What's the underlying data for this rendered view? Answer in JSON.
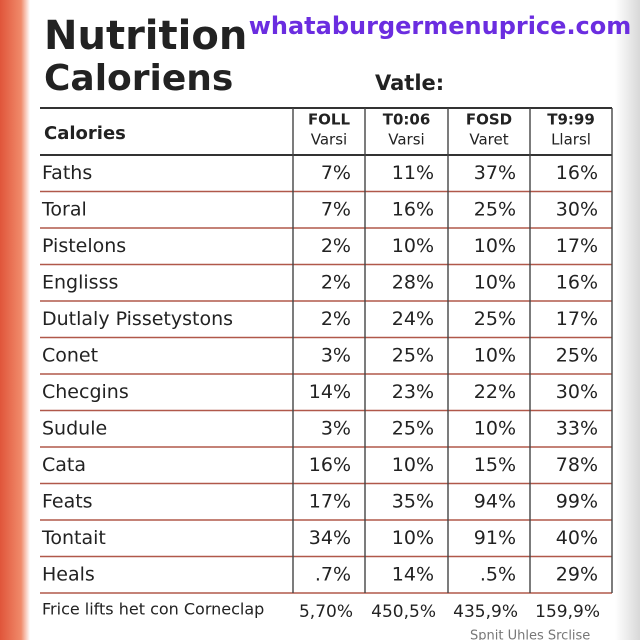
{
  "watermark": "whataburgermenuprice.com",
  "header": {
    "title_line1": "Nutrition",
    "title_line2": "Caloriens",
    "subtitle": "Vatle:"
  },
  "table": {
    "corner": "Calories",
    "columns": [
      {
        "top": "FOLL",
        "bottom": "Varsi"
      },
      {
        "top": "T0:06",
        "bottom": "Varsi"
      },
      {
        "top": "FOSD",
        "bottom": "Varet"
      },
      {
        "top": "T9:99",
        "bottom": "Llarsl"
      }
    ],
    "rows": [
      [
        "Faths",
        "7%",
        "11%",
        "37%",
        "16%"
      ],
      [
        "Toral",
        "7%",
        "16%",
        "25%",
        "30%"
      ],
      [
        "Pistelons",
        "2%",
        "10%",
        "10%",
        "17%"
      ],
      [
        "Englisss",
        "2%",
        "28%",
        "10%",
        "16%"
      ],
      [
        "Dutlaly Pissetystons",
        "2%",
        "24%",
        "25%",
        "17%"
      ],
      [
        "Conet",
        "3%",
        "25%",
        "10%",
        "25%"
      ],
      [
        "Checgins",
        "14%",
        "23%",
        "22%",
        "30%"
      ],
      [
        "Sudule",
        "3%",
        "25%",
        "10%",
        "33%"
      ],
      [
        "Cata",
        "16%",
        "10%",
        "15%",
        "78%"
      ],
      [
        "Feats",
        "17%",
        "35%",
        "94%",
        "99%"
      ],
      [
        "Tontait",
        "34%",
        "10%",
        "91%",
        "40%"
      ],
      [
        "Heals",
        ".7%",
        "14%",
        ".5%",
        "29%"
      ]
    ],
    "footer": [
      "Frice lifts het con Corneclap",
      "5,70%",
      "450,5%",
      "435,9%",
      "159,9%"
    ]
  },
  "bottom_note": "Spnit Uhles Srclise"
}
